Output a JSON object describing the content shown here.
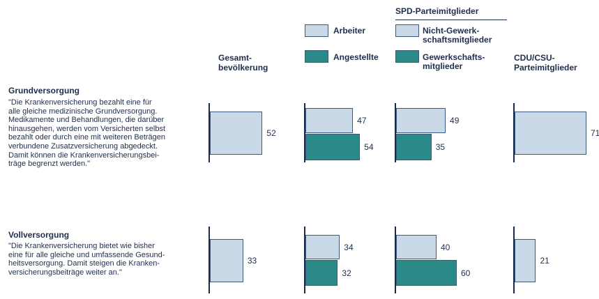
{
  "chart_data": {
    "type": "bar",
    "orientation": "horizontal",
    "categories": [
      "Grundversorgung",
      "Vollversorgung"
    ],
    "quotes": [
      "\"Die Krankenversicherung bezahlt eine für\nalle gleiche medizinische Grundversorgung.\nMedikamente und Behandlungen, die darüber\nhinausgehen, werden vom Versicherten selbst\nbezahlt oder durch eine mit weiteren Beträgen\nverbundene Zusatzversicherung abgedeckt.\nDamit können die Krankenversicherungsbei-\nträge begrenzt werden.\"",
      "\"Die Krankenversicherung bietet wie bisher\neine für alle gleiche und umfassende Gesund-\nheitsversorgung.  Damit steigen die Kranken-\nversicherungsbeiträge weiter an.\""
    ],
    "xlim": [
      0,
      100
    ],
    "groups": [
      {
        "label": "Gesamt-\nbevölkerung",
        "series": [
          {
            "color": "#c9d9e8",
            "values": [
              52,
              33
            ]
          }
        ]
      },
      {
        "series": [
          {
            "name": "Arbeiter",
            "color": "#c9d9e8",
            "values": [
              47,
              34
            ]
          },
          {
            "name": "Angestellte",
            "color": "#2a8a88",
            "values": [
              54,
              32
            ]
          }
        ]
      },
      {
        "title": "SPD-Parteimitglieder",
        "series": [
          {
            "name": "Nicht-Gewerk-\nschaftsmitglieder",
            "color": "#c9d9e8",
            "values": [
              49,
              40
            ]
          },
          {
            "name": "Gewerkschafts-\nmitglieder",
            "color": "#2a8a88",
            "values": [
              35,
              60
            ]
          }
        ]
      },
      {
        "label": "CDU/CSU-\nParteimitglieder",
        "series": [
          {
            "color": "#c9d9e8",
            "values": [
              71,
              21
            ]
          }
        ]
      }
    ]
  }
}
